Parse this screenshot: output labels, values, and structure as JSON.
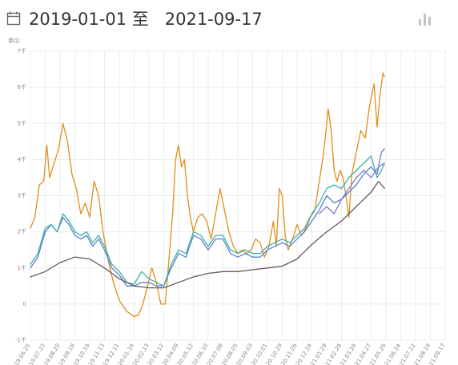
{
  "header": {
    "date_range": "2019-01-01 至   2021-09-17",
    "calendar_icon": "calendar-icon",
    "chart_toggle_icon": "bar-chart-icon"
  },
  "chart_data": {
    "type": "line",
    "unit_label": "单位:",
    "ylim": [
      -1,
      7
    ],
    "yticks": [
      {
        "v": 7,
        "label": "7千"
      },
      {
        "v": 6,
        "label": "6千"
      },
      {
        "v": 5,
        "label": "5千"
      },
      {
        "v": 4,
        "label": "4千"
      },
      {
        "v": 3,
        "label": "3千"
      },
      {
        "v": 2,
        "label": "2千"
      },
      {
        "v": 1,
        "label": "1千"
      },
      {
        "v": 0,
        "label": "0"
      },
      {
        "v": -1,
        "label": "-1千"
      }
    ],
    "xticks": [
      "2019.06.25",
      "2019.07.23",
      "2019.08.20",
      "2019.09.18",
      "2019.10.16",
      "2019.11.13",
      "2019.12.11",
      "2020.01.16",
      "2020.02.13",
      "2020.03.12",
      "2020.04.09",
      "2020.05.12",
      "2020.06.10",
      "2020.07.08",
      "2020.08.05",
      "2020.09.03",
      "2020.10.01",
      "2020.10.29",
      "2020.11.26",
      "2020.12.24",
      "2021.01.29",
      "2021.02.26",
      "2021.03.26",
      "2021.04.27",
      "2021.05.26",
      "2021.06.24",
      "2021.07.22",
      "2021.08.19",
      "2021.09.17"
    ],
    "grid": true,
    "colors": {
      "orange": "#e08e1a",
      "blue": "#5b7fd6",
      "green": "#3bb3a0",
      "purple": "#8878c8",
      "dark": "#6a5760"
    },
    "series": [
      {
        "color": "#e08e1a",
        "values": [
          [
            0,
            2.1
          ],
          [
            0.3,
            2.4
          ],
          [
            0.6,
            3.3
          ],
          [
            0.9,
            3.4
          ],
          [
            1.1,
            4.4
          ],
          [
            1.3,
            3.5
          ],
          [
            1.6,
            3.9
          ],
          [
            1.9,
            4.3
          ],
          [
            2.2,
            5.0
          ],
          [
            2.5,
            4.5
          ],
          [
            2.8,
            3.6
          ],
          [
            3.1,
            3.2
          ],
          [
            3.4,
            2.5
          ],
          [
            3.7,
            2.8
          ],
          [
            4.0,
            2.4
          ],
          [
            4.3,
            3.4
          ],
          [
            4.6,
            3.0
          ],
          [
            4.9,
            2.0
          ],
          [
            5.2,
            1.3
          ],
          [
            5.6,
            0.6
          ],
          [
            6.0,
            0.1
          ],
          [
            6.5,
            -0.2
          ],
          [
            7.0,
            -0.35
          ],
          [
            7.3,
            -0.3
          ],
          [
            7.6,
            0.0
          ],
          [
            7.9,
            0.5
          ],
          [
            8.2,
            1.0
          ],
          [
            8.5,
            0.6
          ],
          [
            8.8,
            0.0
          ],
          [
            9.1,
            0.0
          ],
          [
            9.3,
            1.0
          ],
          [
            9.6,
            2.5
          ],
          [
            9.8,
            4.0
          ],
          [
            10.0,
            4.4
          ],
          [
            10.2,
            3.8
          ],
          [
            10.4,
            4.0
          ],
          [
            10.6,
            3.0
          ],
          [
            10.8,
            2.4
          ],
          [
            11.0,
            2.0
          ],
          [
            11.3,
            2.4
          ],
          [
            11.6,
            2.5
          ],
          [
            11.9,
            2.3
          ],
          [
            12.2,
            1.8
          ],
          [
            12.5,
            2.5
          ],
          [
            12.8,
            3.2
          ],
          [
            13.1,
            2.6
          ],
          [
            13.4,
            2.0
          ],
          [
            13.7,
            1.6
          ],
          [
            14.0,
            1.4
          ],
          [
            14.3,
            1.5
          ],
          [
            14.6,
            1.4
          ],
          [
            14.9,
            1.5
          ],
          [
            15.2,
            1.8
          ],
          [
            15.5,
            1.7
          ],
          [
            15.8,
            1.3
          ],
          [
            16.1,
            1.6
          ],
          [
            16.4,
            2.3
          ],
          [
            16.6,
            1.6
          ],
          [
            16.8,
            3.2
          ],
          [
            17.0,
            3.0
          ],
          [
            17.2,
            1.9
          ],
          [
            17.4,
            1.5
          ],
          [
            17.7,
            1.8
          ],
          [
            18.0,
            2.2
          ],
          [
            18.3,
            1.9
          ],
          [
            18.6,
            2.1
          ],
          [
            18.9,
            2.4
          ],
          [
            19.2,
            2.6
          ],
          [
            19.5,
            3.4
          ],
          [
            19.8,
            4.2
          ],
          [
            20.1,
            5.4
          ],
          [
            20.3,
            4.8
          ],
          [
            20.5,
            3.7
          ],
          [
            20.7,
            3.4
          ],
          [
            20.9,
            3.7
          ],
          [
            21.1,
            3.5
          ],
          [
            21.3,
            3.0
          ],
          [
            21.5,
            2.4
          ],
          [
            21.7,
            3.6
          ],
          [
            22.0,
            4.2
          ],
          [
            22.3,
            4.8
          ],
          [
            22.6,
            4.6
          ],
          [
            22.9,
            5.5
          ],
          [
            23.2,
            6.1
          ],
          [
            23.4,
            4.9
          ],
          [
            23.6,
            5.8
          ],
          [
            23.8,
            6.4
          ],
          [
            23.9,
            6.3
          ]
        ]
      },
      {
        "color": "#5b7fd6",
        "values": [
          [
            0,
            1.0
          ],
          [
            0.5,
            1.3
          ],
          [
            1.0,
            2.0
          ],
          [
            1.4,
            2.2
          ],
          [
            1.8,
            2.0
          ],
          [
            2.2,
            2.4
          ],
          [
            2.6,
            2.2
          ],
          [
            3.0,
            1.9
          ],
          [
            3.4,
            1.8
          ],
          [
            3.8,
            1.9
          ],
          [
            4.2,
            1.6
          ],
          [
            4.6,
            1.8
          ],
          [
            5.0,
            1.5
          ],
          [
            5.5,
            1.0
          ],
          [
            6.0,
            0.8
          ],
          [
            6.5,
            0.5
          ],
          [
            7.0,
            0.5
          ],
          [
            7.5,
            0.6
          ],
          [
            8.0,
            0.6
          ],
          [
            8.5,
            0.5
          ],
          [
            9.0,
            0.5
          ],
          [
            9.5,
            1.0
          ],
          [
            10.0,
            1.4
          ],
          [
            10.5,
            1.3
          ],
          [
            11.0,
            1.9
          ],
          [
            11.5,
            1.8
          ],
          [
            12.0,
            1.5
          ],
          [
            12.5,
            1.8
          ],
          [
            13.0,
            1.8
          ],
          [
            13.5,
            1.4
          ],
          [
            14.0,
            1.3
          ],
          [
            14.5,
            1.4
          ],
          [
            15.0,
            1.3
          ],
          [
            15.5,
            1.3
          ],
          [
            16.0,
            1.5
          ],
          [
            16.5,
            1.6
          ],
          [
            17.0,
            1.7
          ],
          [
            17.5,
            1.6
          ],
          [
            18.0,
            1.8
          ],
          [
            18.5,
            2.0
          ],
          [
            19.0,
            2.3
          ],
          [
            19.5,
            2.6
          ],
          [
            20.0,
            3.0
          ],
          [
            20.5,
            2.8
          ],
          [
            21.0,
            2.9
          ],
          [
            21.5,
            3.1
          ],
          [
            22.0,
            3.3
          ],
          [
            22.5,
            3.6
          ],
          [
            23.0,
            3.8
          ],
          [
            23.4,
            3.6
          ],
          [
            23.7,
            4.2
          ],
          [
            23.9,
            4.3
          ]
        ]
      },
      {
        "color": "#3bb3a0",
        "values": [
          [
            0,
            1.1
          ],
          [
            0.5,
            1.4
          ],
          [
            1.0,
            2.1
          ],
          [
            1.4,
            2.2
          ],
          [
            1.8,
            2.0
          ],
          [
            2.2,
            2.5
          ],
          [
            2.6,
            2.3
          ],
          [
            3.0,
            2.0
          ],
          [
            3.4,
            1.9
          ],
          [
            3.8,
            2.0
          ],
          [
            4.2,
            1.7
          ],
          [
            4.6,
            1.9
          ],
          [
            5.0,
            1.6
          ],
          [
            5.5,
            1.1
          ],
          [
            6.0,
            0.9
          ],
          [
            6.5,
            0.6
          ],
          [
            7.0,
            0.55
          ],
          [
            7.5,
            0.9
          ],
          [
            8.0,
            0.7
          ],
          [
            8.5,
            0.6
          ],
          [
            9.0,
            0.5
          ],
          [
            9.5,
            1.1
          ],
          [
            10.0,
            1.5
          ],
          [
            10.5,
            1.4
          ],
          [
            11.0,
            2.0
          ],
          [
            11.5,
            1.9
          ],
          [
            12.0,
            1.6
          ],
          [
            12.5,
            1.9
          ],
          [
            13.0,
            1.9
          ],
          [
            13.5,
            1.5
          ],
          [
            14.0,
            1.4
          ],
          [
            14.5,
            1.5
          ],
          [
            15.0,
            1.4
          ],
          [
            15.5,
            1.4
          ],
          [
            16.0,
            1.6
          ],
          [
            16.5,
            1.7
          ],
          [
            17.0,
            1.8
          ],
          [
            17.5,
            1.7
          ],
          [
            18.0,
            1.9
          ],
          [
            18.5,
            2.1
          ],
          [
            19.0,
            2.5
          ],
          [
            19.5,
            2.8
          ],
          [
            20.0,
            3.2
          ],
          [
            20.5,
            3.3
          ],
          [
            21.0,
            3.2
          ],
          [
            21.5,
            3.5
          ],
          [
            22.0,
            3.7
          ],
          [
            22.5,
            3.9
          ],
          [
            23.0,
            4.1
          ],
          [
            23.4,
            3.5
          ],
          [
            23.7,
            3.7
          ],
          [
            23.9,
            3.9
          ]
        ]
      },
      {
        "color": "#8878c8",
        "values": [
          [
            19.5,
            2.5
          ],
          [
            20.0,
            2.7
          ],
          [
            20.5,
            2.5
          ],
          [
            21.0,
            2.9
          ],
          [
            21.5,
            3.2
          ],
          [
            22.0,
            3.5
          ],
          [
            22.5,
            3.7
          ],
          [
            23.0,
            3.5
          ],
          [
            23.5,
            3.8
          ],
          [
            23.9,
            3.9
          ]
        ]
      },
      {
        "color": "#6a5760",
        "values": [
          [
            0,
            0.75
          ],
          [
            1.0,
            0.9
          ],
          [
            2.0,
            1.15
          ],
          [
            3.0,
            1.3
          ],
          [
            4.0,
            1.25
          ],
          [
            5.0,
            1.0
          ],
          [
            6.0,
            0.7
          ],
          [
            7.0,
            0.5
          ],
          [
            8.0,
            0.45
          ],
          [
            9.0,
            0.45
          ],
          [
            10.0,
            0.6
          ],
          [
            11.0,
            0.75
          ],
          [
            12.0,
            0.85
          ],
          [
            13.0,
            0.9
          ],
          [
            14.0,
            0.9
          ],
          [
            15.0,
            0.95
          ],
          [
            16.0,
            1.0
          ],
          [
            17.0,
            1.05
          ],
          [
            18.0,
            1.25
          ],
          [
            19.0,
            1.65
          ],
          [
            20.0,
            2.0
          ],
          [
            21.0,
            2.3
          ],
          [
            22.0,
            2.7
          ],
          [
            23.0,
            3.1
          ],
          [
            23.5,
            3.4
          ],
          [
            23.9,
            3.2
          ]
        ]
      }
    ]
  }
}
